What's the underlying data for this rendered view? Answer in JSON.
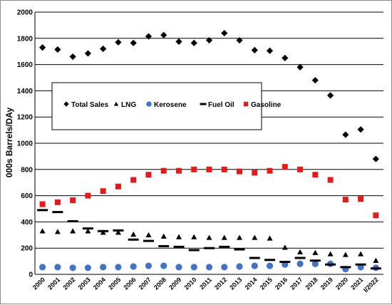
{
  "chart_data": {
    "type": "scatter",
    "title": "",
    "xlabel": "",
    "ylabel": "000s Barrels/DAy",
    "ylim": [
      0,
      2000
    ],
    "yticks": [
      0,
      200,
      400,
      600,
      800,
      1000,
      1200,
      1400,
      1600,
      1800,
      2000
    ],
    "categories": [
      "2000",
      "2001",
      "2002",
      "2003",
      "2004",
      "2005",
      "2006",
      "2007",
      "2008",
      "2009",
      "2010",
      "2011",
      "2012",
      "2013",
      "2014",
      "2015",
      "2016",
      "2017",
      "2018",
      "2019",
      "2020",
      "2021",
      "I/2022"
    ],
    "grid": "horizontal",
    "legend_position": "upper-left-center",
    "series": [
      {
        "name": "Total Sales",
        "marker": "diamond",
        "color": "#000000",
        "values": [
          1730,
          1715,
          1660,
          1685,
          1720,
          1770,
          1765,
          1815,
          1825,
          1775,
          1765,
          1785,
          1840,
          1785,
          1710,
          1705,
          1650,
          1580,
          1480,
          1365,
          1065,
          1105,
          880
        ]
      },
      {
        "name": "LNG",
        "marker": "triangle",
        "color": "#000000",
        "values": [
          330,
          325,
          330,
          330,
          320,
          320,
          305,
          300,
          290,
          285,
          285,
          280,
          280,
          280,
          280,
          275,
          205,
          170,
          165,
          155,
          150,
          155,
          105
        ]
      },
      {
        "name": "Kerosene",
        "marker": "circle",
        "color": "#4472C4",
        "values": [
          55,
          55,
          50,
          50,
          55,
          55,
          60,
          65,
          65,
          55,
          55,
          55,
          55,
          60,
          65,
          65,
          75,
          80,
          80,
          80,
          40,
          55,
          50
        ]
      },
      {
        "name": "Fuel Oil",
        "marker": "dash",
        "color": "#000000",
        "values": [
          490,
          475,
          405,
          350,
          330,
          335,
          265,
          255,
          215,
          210,
          185,
          200,
          210,
          190,
          125,
          110,
          95,
          125,
          105,
          75,
          55,
          75,
          45
        ]
      },
      {
        "name": "Gasoline",
        "marker": "square",
        "color": "#E31A1C",
        "values": [
          535,
          550,
          565,
          600,
          635,
          670,
          720,
          760,
          790,
          790,
          800,
          800,
          800,
          785,
          775,
          790,
          820,
          800,
          760,
          720,
          570,
          575,
          450
        ]
      }
    ]
  }
}
